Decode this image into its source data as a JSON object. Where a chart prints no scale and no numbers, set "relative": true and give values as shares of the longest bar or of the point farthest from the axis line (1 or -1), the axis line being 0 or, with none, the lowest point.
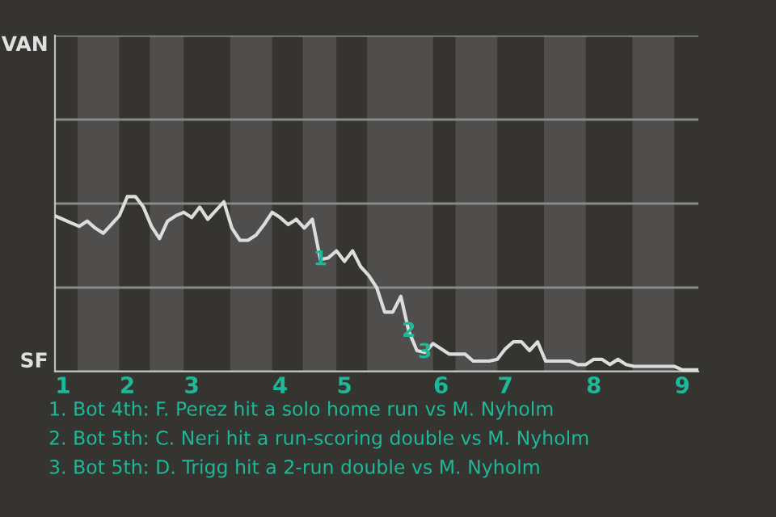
{
  "chart_data": {
    "type": "line",
    "relative": true,
    "categories": [
      null,
      "1",
      null,
      null,
      null,
      null,
      null,
      null,
      null,
      "2",
      null,
      null,
      null,
      null,
      null,
      null,
      null,
      "3",
      null,
      null,
      null,
      null,
      null,
      null,
      null,
      null,
      null,
      null,
      "4",
      null,
      null,
      null,
      null,
      null,
      null,
      null,
      "5",
      null,
      null,
      null,
      null,
      null,
      null,
      null,
      null,
      null,
      null,
      null,
      "6",
      null,
      null,
      null,
      null,
      null,
      null,
      null,
      "7",
      null,
      null,
      null,
      null,
      null,
      null,
      null,
      null,
      null,
      null,
      "8",
      null,
      null,
      null,
      null,
      null,
      null,
      null,
      null,
      null,
      null,
      "9",
      null,
      null
    ],
    "series": [
      {
        "color": "#dcdcdc",
        "values": [
          0.89,
          0.87,
          0.85,
          0.83,
          0.86,
          0.82,
          0.79,
          0.84,
          0.89,
          1,
          1,
          0.94,
          0.83,
          0.76,
          0.86,
          0.89,
          0.91,
          0.88,
          0.94,
          0.87,
          0.92,
          0.97,
          0.82,
          0.75,
          0.75,
          0.78,
          0.84,
          0.91,
          0.88,
          0.84,
          0.87,
          0.82,
          0.87,
          0.64,
          0.65,
          0.69,
          0.63,
          0.69,
          0.6,
          0.55,
          0.48,
          0.34,
          0.34,
          0.43,
          0.23,
          0.12,
          0.11,
          0.16,
          0.13,
          0.1,
          0.1,
          0.1,
          0.06,
          0.06,
          0.06,
          0.07,
          0.13,
          0.17,
          0.17,
          0.12,
          0.17,
          0.06,
          0.06,
          0.06,
          0.06,
          0.04,
          0.04,
          0.07,
          0.07,
          0.04,
          0.07,
          0.04,
          0.03,
          0.03,
          0.03,
          0.03,
          0.03,
          0.03,
          0.01,
          0.01,
          0.01
        ]
      }
    ],
    "ref_lines": [
      {
        "axis": "y",
        "value": 0,
        "label": "SF",
        "color": "#bdbdbd"
      },
      {
        "axis": "y",
        "value": 0.48,
        "label": null,
        "color": "#8a8a8a"
      },
      {
        "axis": "y",
        "value": 0.96,
        "label": null,
        "color": "#8a8a8a"
      },
      {
        "axis": "y",
        "value": 1.44,
        "label": null,
        "color": "#8a8a8a"
      },
      {
        "axis": "y",
        "value": 1.92,
        "label": "VAN",
        "color": "#8a8a8a"
      }
    ],
    "annotations": [
      {
        "text": "1",
        "y": 0.64
      },
      {
        "text": "2",
        "y": 0.23
      },
      {
        "text": "3",
        "y": 0.11
      },
      "1. Bot 4th: F. Perez hit a solo home run vs M. Nyholm",
      "2. Bot 5th: C. Neri hit a run-scoring double vs M. Nyholm",
      "3. Bot 5th: D. Trigg hit a 2-run double vs M. Nyholm"
    ]
  }
}
